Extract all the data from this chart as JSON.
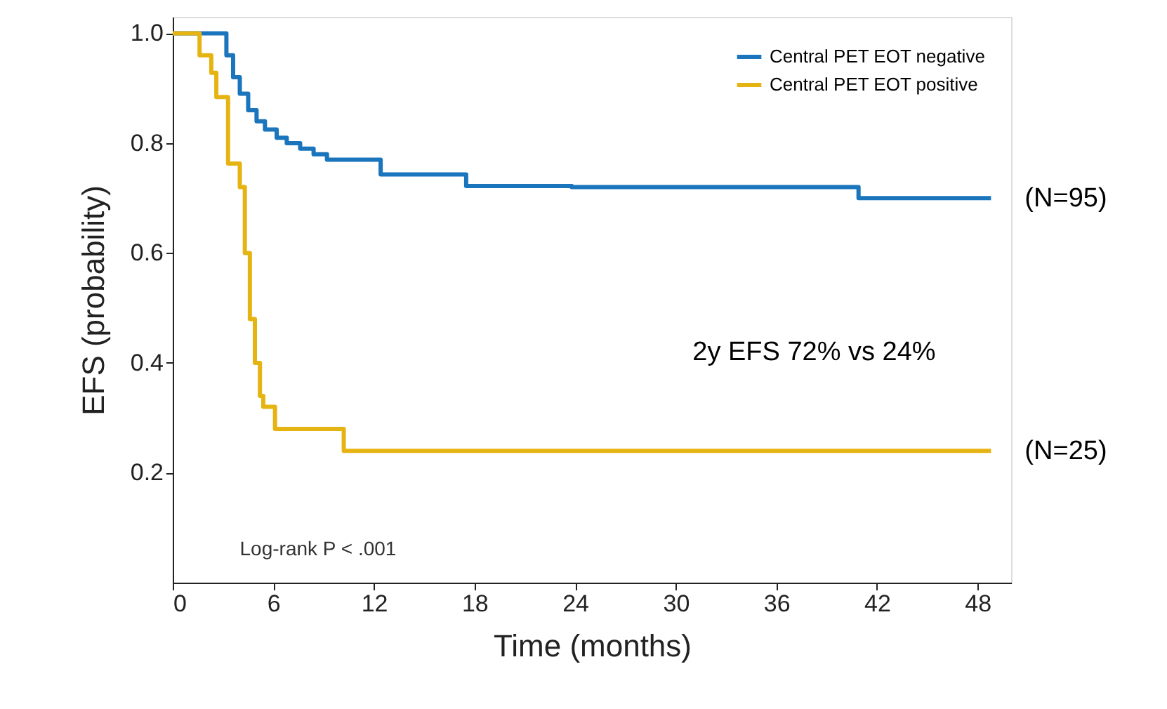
{
  "chart_data": {
    "type": "step",
    "xlabel": "Time (months)",
    "ylabel": "EFS (probability)",
    "x": [
      0,
      3.2,
      3.6,
      4.0,
      4.5,
      5.0,
      5.5,
      6.2,
      6.8,
      7.6,
      8.4,
      9.2,
      12.4,
      17.5,
      23.8,
      40.9,
      48.8
    ],
    "series": [
      {
        "name": "Central PET EOT negative",
        "color": "#1a75bc",
        "values": [
          1.0,
          0.96,
          0.92,
          0.89,
          0.86,
          0.84,
          0.825,
          0.81,
          0.8,
          0.79,
          0.78,
          0.77,
          0.743,
          0.722,
          0.72,
          0.7,
          0.7
        ]
      },
      {
        "name": "Central PET EOT positive",
        "color": "#e6b412",
        "x": [
          0,
          1.6,
          2.3,
          2.6,
          3.3,
          4.0,
          4.3,
          4.6,
          4.9,
          5.2,
          5.4,
          6.1,
          10.2,
          48.8
        ],
        "values": [
          1.0,
          0.96,
          0.928,
          0.884,
          0.763,
          0.72,
          0.6,
          0.48,
          0.4,
          0.34,
          0.32,
          0.28,
          0.24,
          0.24
        ]
      }
    ],
    "xlim": [
      0,
      50
    ],
    "ylim": [
      0,
      1.03
    ],
    "xticks": [
      0,
      6,
      12,
      18,
      24,
      30,
      36,
      42,
      48
    ],
    "yticks": [
      {
        "value": 0.2,
        "label": "0.2"
      },
      {
        "value": 0.4,
        "label": "0.4"
      },
      {
        "value": 0.6,
        "label": "0.6"
      },
      {
        "value": 0.8,
        "label": "0.8"
      },
      {
        "value": 1.0,
        "label": "1.0"
      }
    ],
    "annotations": [
      "Log-rank P < .001",
      "2y EFS 72% vs 24%",
      {
        "text": "(N=95)",
        "x": 48.8,
        "y": 0.7
      },
      {
        "text": "(N=25)",
        "x": 48.8,
        "y": 0.24
      }
    ],
    "legend": "top right",
    "grid": false,
    "marker": "none",
    "line_style": "solid"
  }
}
